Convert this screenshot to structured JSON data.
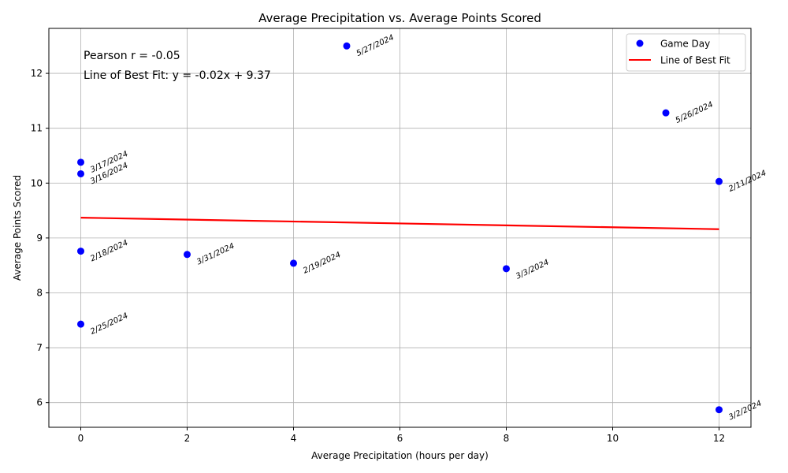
{
  "chart_data": {
    "type": "scatter",
    "title": "Average Precipitation vs. Average Points Scored",
    "xlabel": "Average Precipitation (hours per day)",
    "ylabel": "Average Points Scored",
    "xlim": [
      -0.6,
      12.6
    ],
    "ylim": [
      5.55,
      12.82
    ],
    "xticks": [
      0,
      2,
      4,
      6,
      8,
      10,
      12
    ],
    "yticks": [
      6,
      7,
      8,
      9,
      10,
      11,
      12
    ],
    "grid": true,
    "legend_position": "top-right",
    "annotations": [
      "Pearson r = -0.05",
      "Line of Best Fit: y = -0.02x + 9.37"
    ],
    "series": [
      {
        "name": "Game Day",
        "kind": "scatter",
        "color": "#0000ff",
        "points": [
          {
            "x": 0,
            "y": 10.38,
            "label": "3/17/2024"
          },
          {
            "x": 0,
            "y": 10.17,
            "label": "3/16/2024"
          },
          {
            "x": 0,
            "y": 8.76,
            "label": "2/18/2024"
          },
          {
            "x": 0,
            "y": 7.43,
            "label": "2/25/2024"
          },
          {
            "x": 2,
            "y": 8.7,
            "label": "3/31/2024"
          },
          {
            "x": 4,
            "y": 8.54,
            "label": "2/19/2024"
          },
          {
            "x": 5,
            "y": 12.5,
            "label": "5/27/2024"
          },
          {
            "x": 8,
            "y": 8.44,
            "label": "3/3/2024"
          },
          {
            "x": 11,
            "y": 11.28,
            "label": "5/26/2024"
          },
          {
            "x": 12,
            "y": 10.03,
            "label": "2/11/2024"
          },
          {
            "x": 12,
            "y": 5.87,
            "label": "3/2/2024"
          }
        ]
      },
      {
        "name": "Line of Best Fit",
        "kind": "line",
        "color": "#ff0000",
        "x": [
          0,
          12
        ],
        "y": [
          9.37,
          9.16
        ]
      }
    ]
  }
}
